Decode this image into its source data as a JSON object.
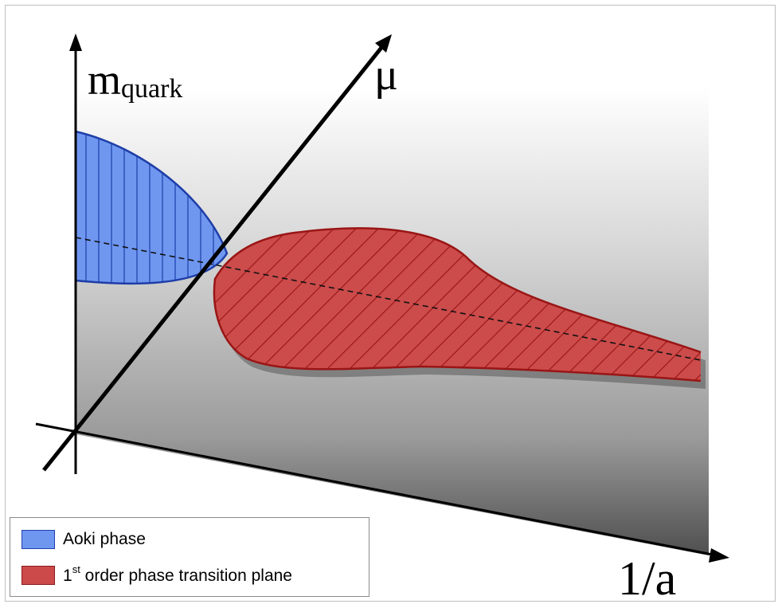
{
  "axes": {
    "vertical": {
      "label_main": "m",
      "label_sub": "quark"
    },
    "depth": {
      "label": "μ"
    },
    "horizontal": {
      "label": "1/a"
    }
  },
  "legend": {
    "items": [
      {
        "label": "Aoki phase",
        "color": "#6f97f0",
        "border": "#1f3fb0"
      },
      {
        "label_prefix": "1",
        "label_sup": "st",
        "label_suffix": " order phase transition plane",
        "color": "#cc4a4a",
        "border": "#8b1a1a"
      }
    ]
  },
  "colors": {
    "aoki_fill": "#6f97f0",
    "aoki_edge": "#1e3ea8",
    "transition_fill": "#cc4b4b",
    "transition_edge": "#9a1515",
    "plane_light": "#ffffff",
    "plane_dark": "#4d4d4d"
  }
}
